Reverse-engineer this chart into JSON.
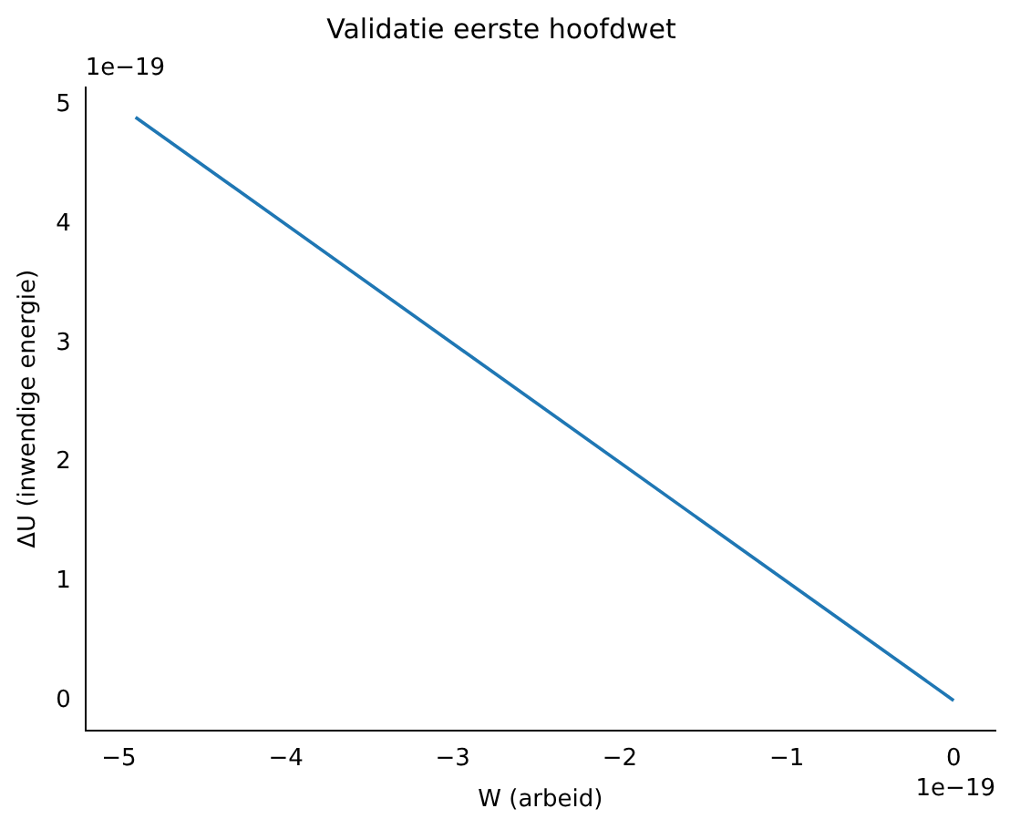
{
  "chart_data": {
    "type": "line",
    "title": "Validatie eerste hoofdwet",
    "xlabel": "W (arbeid)",
    "ylabel": "ΔU (inwendige energie)",
    "x": [
      -4.9,
      0
    ],
    "series": [
      {
        "color": "#1f77b4",
        "values": [
          4.9,
          0
        ]
      }
    ],
    "xlim": [
      -5.2,
      0.25
    ],
    "xticks": [
      {
        "value": -5,
        "label": "−5"
      },
      {
        "value": -4,
        "label": "−4"
      },
      {
        "value": -3,
        "label": "−3"
      },
      {
        "value": -2,
        "label": "−2"
      },
      {
        "value": -1,
        "label": "−1"
      },
      0
    ],
    "ylim": [
      -0.25,
      5.15
    ],
    "yticks": [
      0,
      1,
      2,
      3,
      4,
      5
    ],
    "annotations": [
      "1e−19",
      "1e−19"
    ],
    "grid": false,
    "legend": false,
    "marker": "none",
    "line_style": "solid"
  }
}
